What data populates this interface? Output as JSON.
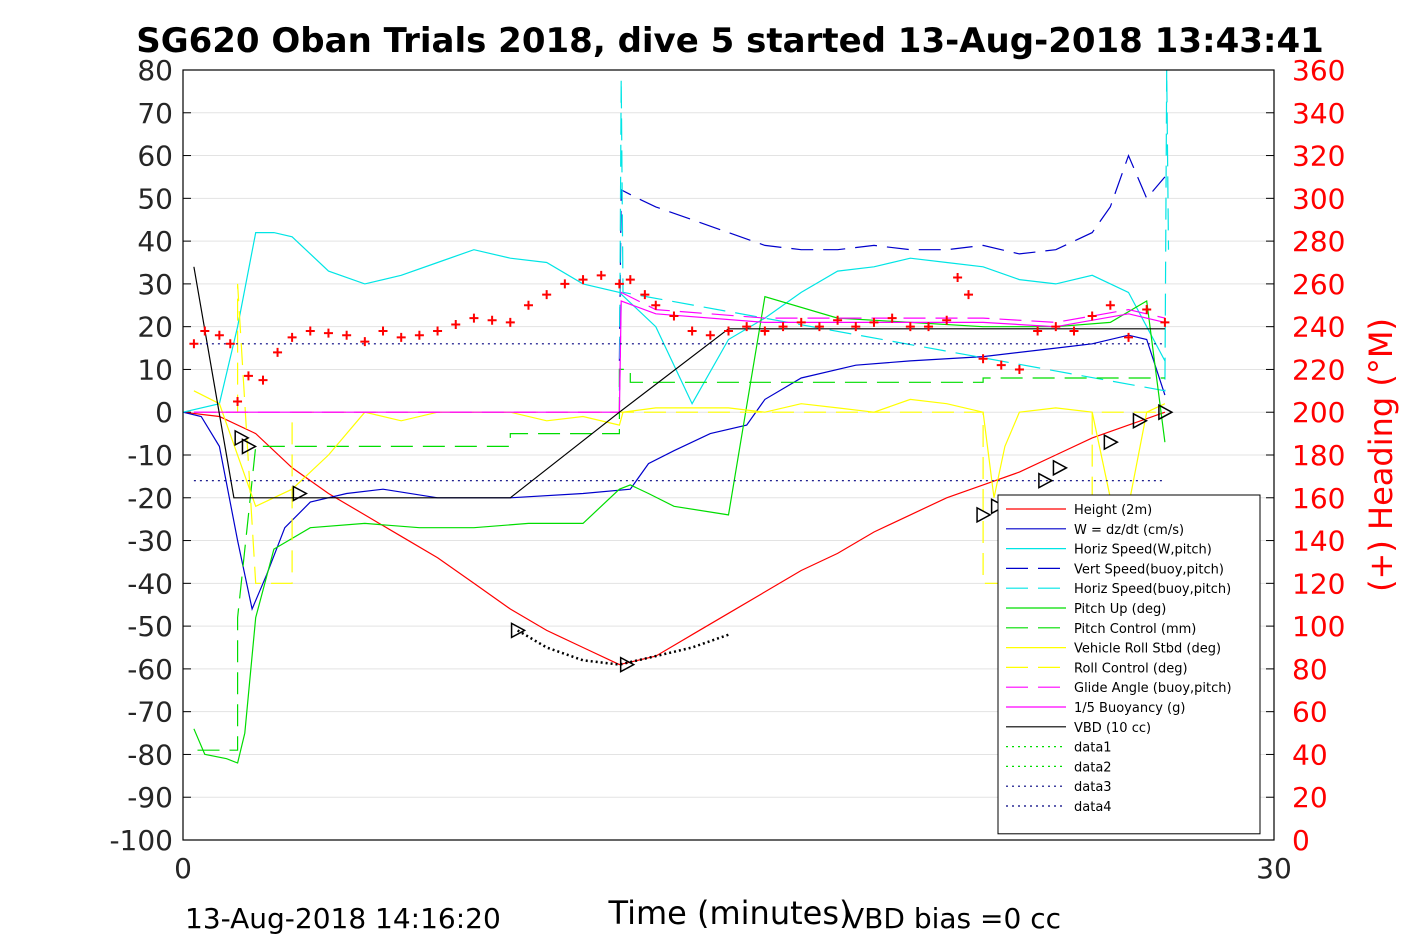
{
  "chart_data": {
    "type": "line",
    "title": "SG620 Oban Trials 2018, dive 5 started 13-Aug-2018 13:43:41",
    "xlabel": "Time (minutes)",
    "ylabel_right": "(+) Heading (°M)",
    "xlim": [
      0,
      30
    ],
    "ylim": [
      -100,
      80
    ],
    "ylim_right": [
      0,
      360
    ],
    "xticks": [
      0,
      30
    ],
    "yticks": [
      -100,
      -90,
      -80,
      -70,
      -60,
      -50,
      -40,
      -30,
      -20,
      -10,
      0,
      10,
      20,
      30,
      40,
      50,
      60,
      70,
      80
    ],
    "yticks_right": [
      0,
      20,
      40,
      60,
      80,
      100,
      120,
      140,
      160,
      180,
      200,
      220,
      240,
      260,
      280,
      300,
      320,
      340,
      360
    ],
    "grid": true,
    "legend_position": "lower-right",
    "footer_left": "13-Aug-2018 14:16:20",
    "footer_right": "VBD bias =0 cc",
    "colors": {
      "red": "#ff0000",
      "blue": "#0000cc",
      "cyan": "#00e5e5",
      "green": "#00dd00",
      "yellow": "#ffff00",
      "magenta": "#ff00ff",
      "black": "#000000",
      "navy": "#000080"
    },
    "series": [
      {
        "name": "Height (2m)",
        "color": "#ff0000",
        "style": "solid",
        "x": [
          0,
          1,
          2,
          3,
          4,
          5,
          6,
          7,
          8,
          9,
          10,
          11,
          12,
          13,
          14,
          15,
          16,
          17,
          18,
          19,
          20,
          21,
          22,
          23,
          24,
          25,
          26,
          27
        ],
        "y": [
          0,
          -1,
          -5,
          -13,
          -19,
          -24,
          -29,
          -34,
          -40,
          -46,
          -51,
          -55,
          -59,
          -57,
          -52,
          -47,
          -42,
          -37,
          -33,
          -28,
          -24,
          -20,
          -17,
          -14,
          -10,
          -6,
          -3,
          0
        ]
      },
      {
        "name": "W = dz/dt (cm/s)",
        "color": "#0000cc",
        "style": "solid",
        "x": [
          0,
          0.5,
          1,
          1.5,
          1.9,
          2.3,
          2.8,
          3.5,
          4.5,
          5.5,
          7,
          9,
          11,
          12.3,
          12.8,
          13.5,
          14.5,
          15.5,
          16,
          17,
          18.5,
          20,
          22,
          24,
          25,
          26,
          26.5,
          27
        ],
        "y": [
          0,
          -1,
          -8,
          -30,
          -46,
          -38,
          -27,
          -21,
          -19,
          -18,
          -20,
          -20,
          -19,
          -18,
          -12,
          -9,
          -5,
          -3,
          3,
          8,
          11,
          12,
          13,
          15,
          16,
          18,
          17,
          4
        ]
      },
      {
        "name": "Horiz Speed(W,pitch)",
        "color": "#00e5e5",
        "style": "solid",
        "x": [
          0,
          1,
          1.5,
          2,
          2.5,
          3,
          3.5,
          4,
          5,
          6,
          7,
          8,
          9,
          10,
          11,
          12,
          13,
          14,
          15,
          16,
          17,
          18,
          19,
          20,
          21,
          22,
          23,
          24,
          25,
          26,
          27
        ],
        "y": [
          0,
          2,
          20,
          42,
          42,
          41,
          37,
          33,
          30,
          32,
          35,
          38,
          36,
          35,
          30,
          28,
          20,
          2,
          17,
          22,
          28,
          33,
          34,
          36,
          35,
          34,
          31,
          30,
          32,
          28,
          12
        ]
      },
      {
        "name": "Vert Speed(buoy,pitch)",
        "color": "#0000cc",
        "style": "dashed",
        "x": [
          12,
          12.05,
          12.5,
          13,
          14,
          15,
          16,
          17,
          18,
          19,
          20,
          21,
          22,
          23,
          24,
          25,
          25.5,
          26,
          26.5,
          27
        ],
        "y": [
          12,
          52,
          50,
          48,
          45,
          42,
          39,
          38,
          38,
          39,
          38,
          38,
          39,
          37,
          38,
          42,
          48,
          60,
          50,
          55
        ]
      },
      {
        "name": "Horiz Speed(buoy,pitch)",
        "color": "#00e5e5",
        "style": "dashed",
        "x": [
          12,
          12.05,
          12.1,
          27,
          27.05,
          27.1
        ],
        "y": [
          5,
          78,
          28,
          5,
          80,
          38
        ]
      },
      {
        "name": "Pitch Up (deg)",
        "color": "#00dd00",
        "style": "solid",
        "x": [
          0.3,
          0.6,
          1.2,
          1.5,
          1.7,
          2,
          2.5,
          3.5,
          5,
          6.5,
          8,
          9.5,
          11,
          12,
          12.3,
          12.8,
          13.5,
          15,
          16,
          18,
          20,
          22,
          24,
          25.5,
          26.5,
          27
        ],
        "y": [
          -74,
          -80,
          -81,
          -82,
          -75,
          -48,
          -32,
          -27,
          -26,
          -27,
          -27,
          -26,
          -26,
          -18,
          -17,
          -19,
          -22,
          -24,
          27,
          22,
          21,
          20,
          20,
          21,
          26,
          -7
        ]
      },
      {
        "name": "Pitch Control (mm)",
        "color": "#00dd00",
        "style": "dashed",
        "x": [
          0.4,
          1.5,
          1.5,
          2,
          3,
          9,
          9,
          12,
          12,
          12.3,
          12.3,
          22,
          22,
          27
        ],
        "y": [
          -79,
          -79,
          -48,
          -8,
          -8,
          -8,
          -5,
          -5,
          10,
          10,
          7,
          7,
          8,
          8
        ]
      },
      {
        "name": "Vehicle Roll Stbd (deg)",
        "color": "#ffff00",
        "style": "solid",
        "x": [
          0.3,
          1,
          2,
          3,
          4,
          5,
          6,
          7,
          8,
          9,
          10,
          11,
          12,
          12.1,
          13,
          14,
          15,
          16,
          17,
          18,
          19,
          20,
          21,
          22,
          22.3,
          22.6,
          23,
          24,
          25,
          25.5,
          26,
          26.5,
          27
        ],
        "y": [
          5,
          2,
          -22,
          -18,
          -10,
          0,
          -2,
          0,
          0,
          0,
          -2,
          -1,
          -3,
          0,
          1,
          1,
          1,
          0,
          2,
          1,
          0,
          3,
          2,
          0,
          -20,
          -8,
          0,
          1,
          0,
          -20,
          -22,
          0,
          2
        ]
      },
      {
        "name": "Roll Control (deg)",
        "color": "#ffff00",
        "style": "dashed",
        "x": [
          0.5,
          1.5,
          1.5,
          2,
          2.5,
          3,
          3,
          9,
          12,
          12,
          22,
          22,
          25,
          25,
          27
        ],
        "y": [
          0,
          0,
          30,
          -40,
          -40,
          -40,
          0,
          0,
          0,
          0,
          0,
          -40,
          -40,
          0,
          0
        ]
      },
      {
        "name": "Glide Angle (buoy,pitch)",
        "color": "#ff00ff",
        "style": "dashed",
        "x": [
          0.3,
          12,
          12.05,
          13,
          16,
          18,
          20,
          22,
          24,
          26,
          27
        ],
        "y": [
          0,
          0,
          28,
          24,
          22,
          22,
          22,
          22,
          21,
          24,
          22
        ]
      },
      {
        "name": "1/5 Buoyancy (g)",
        "color": "#ff00ff",
        "style": "solid",
        "x": [
          0.3,
          12,
          12.05,
          13,
          16,
          18,
          20,
          22,
          24,
          26,
          27
        ],
        "y": [
          0,
          0,
          26,
          23,
          21,
          21,
          21,
          21,
          20,
          23,
          21
        ]
      },
      {
        "name": "VBD (10 cc)",
        "color": "#000000",
        "style": "solid",
        "x": [
          0.3,
          1.4,
          9,
          12,
          15,
          27
        ],
        "y": [
          34,
          -20,
          -20,
          0,
          19.5,
          19.5
        ]
      },
      {
        "name": "data1",
        "color": "#00dd00",
        "style": "dotted",
        "x": [],
        "y": []
      },
      {
        "name": "data2",
        "color": "#00dd00",
        "style": "dotted",
        "x": [],
        "y": []
      },
      {
        "name": "data3",
        "color": "#000080",
        "style": "dotted",
        "x": [
          0.3,
          27
        ],
        "y": [
          16,
          16
        ]
      },
      {
        "name": "data4",
        "color": "#000080",
        "style": "dotted",
        "x": [
          0.3,
          27
        ],
        "y": [
          -16,
          -16
        ]
      }
    ],
    "heading_markers": {
      "axis": "right",
      "color": "#ff0000",
      "x": [
        0.3,
        0.6,
        1,
        1.3,
        1.5,
        1.8,
        2.2,
        2.6,
        3,
        3.5,
        4,
        4.5,
        5,
        5.5,
        6,
        6.5,
        7,
        7.5,
        8,
        8.5,
        9,
        9.5,
        10,
        10.5,
        11,
        11.5,
        12,
        12.3,
        12.7,
        13,
        13.5,
        14,
        14.5,
        15,
        15.5,
        16,
        16.5,
        17,
        17.5,
        18,
        18.5,
        19,
        19.5,
        20,
        20.5,
        21,
        21.3,
        21.6,
        22,
        22.5,
        23,
        23.5,
        24,
        24.5,
        25,
        25.5,
        26,
        26.5,
        27
      ],
      "y": [
        232,
        238,
        236,
        232,
        205,
        217,
        215,
        228,
        235,
        238,
        237,
        236,
        233,
        238,
        235,
        236,
        238,
        241,
        244,
        243,
        242,
        250,
        255,
        260,
        262,
        264,
        260,
        262,
        255,
        250,
        245,
        238,
        236,
        238,
        240,
        238,
        240,
        242,
        240,
        243,
        240,
        242,
        244,
        240,
        240,
        243,
        263,
        255,
        225,
        222,
        220,
        238,
        240,
        238,
        245,
        250,
        235,
        248,
        242
      ]
    },
    "triangles": {
      "x": [
        1.6,
        1.8,
        3.2,
        9.2,
        12.2,
        22,
        22.4,
        23.7,
        24.1,
        25.5,
        26.3,
        27
      ],
      "y": [
        -6,
        -8,
        -19,
        -51,
        -59,
        -24,
        -22,
        -16,
        -13,
        -7,
        -2,
        0
      ]
    },
    "dotted_path": {
      "x": [
        9.2,
        10,
        11,
        12,
        13,
        14,
        15
      ],
      "y": [
        -51,
        -55,
        -58,
        -59,
        -57,
        -55,
        -52
      ]
    }
  }
}
